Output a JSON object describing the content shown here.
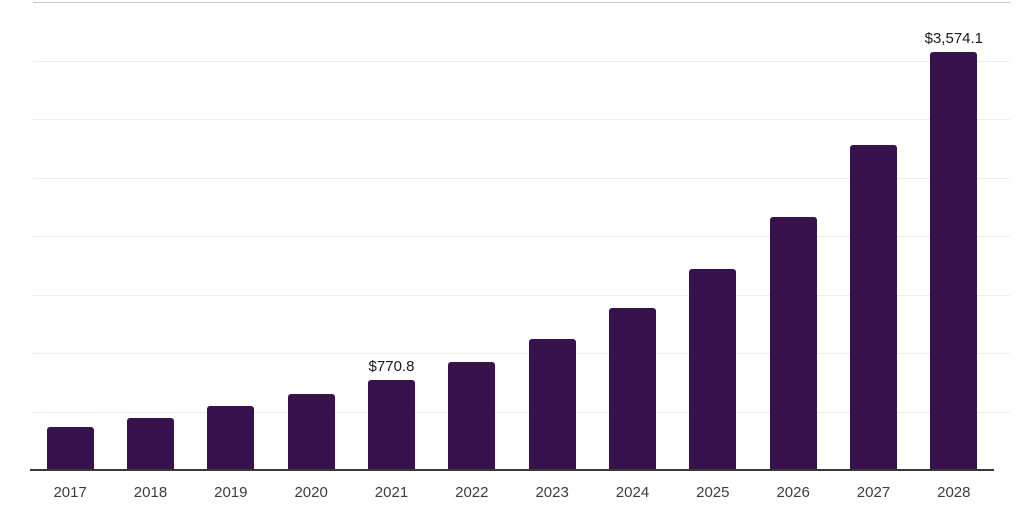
{
  "chart_data": {
    "type": "bar",
    "title": "",
    "xlabel": "",
    "ylabel": "",
    "categories": [
      "2017",
      "2018",
      "2019",
      "2020",
      "2021",
      "2022",
      "2023",
      "2024",
      "2025",
      "2026",
      "2027",
      "2028"
    ],
    "values": [
      366.0,
      443.0,
      548.0,
      652.0,
      770.8,
      922.0,
      1116.0,
      1385.0,
      1715.0,
      2161.0,
      2774.0,
      3574.1
    ],
    "data_labels": [
      null,
      null,
      null,
      null,
      "$770.8",
      null,
      null,
      null,
      null,
      null,
      null,
      "$3,574.1"
    ],
    "ylim": [
      0,
      4000
    ],
    "grid_interval": 500,
    "grid_visible": true,
    "legend_position": "none",
    "bar_color": "#37124d",
    "gridline_color": "#ededed",
    "top_line_color": "#c9c9c9",
    "axis_line_color": "#3a3a3a",
    "label_color": "#1a1a1a",
    "tick_label_color": "#3d3d3d"
  }
}
